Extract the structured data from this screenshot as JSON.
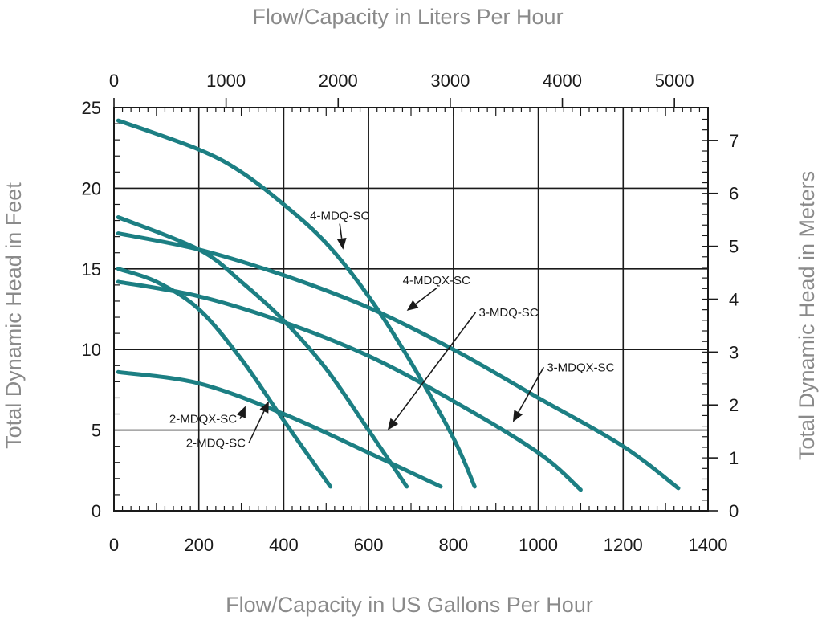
{
  "chart_data": {
    "type": "line",
    "title": "",
    "xlabel": "Flow/Capacity in US Gallons Per Hour",
    "x2label": "Flow/Capacity in Liters Per Hour",
    "ylabel": "Total Dynamic Head in Feet",
    "y2label": "Total Dynamic Head in Meters",
    "xlim": [
      0,
      1400
    ],
    "ylim": [
      0,
      25
    ],
    "x_ticks": [
      0,
      200,
      400,
      600,
      800,
      1000,
      1200,
      1400
    ],
    "y_ticks": [
      0,
      5,
      10,
      15,
      20,
      25
    ],
    "x2_ticks": [
      0,
      1000,
      2000,
      3000,
      4000,
      5000
    ],
    "y2_ticks": [
      0,
      1,
      2,
      3,
      4,
      5,
      6,
      7
    ],
    "grid": true,
    "line_color": "#1c7f83",
    "series": [
      {
        "name": "4-MDQ-SC",
        "x": [
          10,
          200,
          300,
          400,
          500,
          600,
          700,
          800,
          850
        ],
        "y": [
          24.2,
          22.4,
          21.0,
          19.0,
          16.6,
          13.3,
          9.2,
          4.5,
          1.5
        ]
      },
      {
        "name": "4-MDQX-SC",
        "x": [
          10,
          200,
          400,
          600,
          800,
          1000,
          1200,
          1330
        ],
        "y": [
          17.2,
          16.2,
          14.6,
          12.6,
          10.0,
          7.0,
          4.0,
          1.4
        ]
      },
      {
        "name": "3-MDQ-SC",
        "x": [
          10,
          200,
          300,
          400,
          500,
          600,
          690
        ],
        "y": [
          18.2,
          16.2,
          14.2,
          11.8,
          8.8,
          5.0,
          1.5
        ]
      },
      {
        "name": "3-MDQX-SC",
        "x": [
          10,
          200,
          400,
          600,
          800,
          1000,
          1100
        ],
        "y": [
          14.2,
          13.3,
          11.7,
          9.6,
          6.8,
          3.6,
          1.3
        ]
      },
      {
        "name": "2-MDQ-SC",
        "x": [
          10,
          100,
          200,
          300,
          400,
          510
        ],
        "y": [
          15.0,
          14.2,
          12.5,
          9.4,
          5.6,
          1.5
        ]
      },
      {
        "name": "2-MDQX-SC",
        "x": [
          10,
          200,
          400,
          600,
          770
        ],
        "y": [
          8.6,
          7.9,
          6.0,
          3.6,
          1.5
        ]
      }
    ],
    "annotations": [
      {
        "text": "4-MDQ-SC",
        "x": 532,
        "y": 18.3,
        "arrow_to": [
          540,
          16.2
        ]
      },
      {
        "text": "4-MDQX-SC",
        "x": 760,
        "y": 14.3,
        "arrow_to": [
          690,
          12.4
        ]
      },
      {
        "text": "3-MDQ-SC",
        "x": 930,
        "y": 12.3,
        "arrow_to": [
          645,
          5.0
        ]
      },
      {
        "text": "3-MDQX-SC",
        "x": 1100,
        "y": 8.9,
        "arrow_to": [
          940,
          5.5
        ]
      },
      {
        "text": "2-MDQX-SC",
        "x": 210,
        "y": 5.7,
        "arrow_to": [
          310,
          6.5
        ]
      },
      {
        "text": "2-MDQ-SC",
        "x": 240,
        "y": 4.2,
        "arrow_to": [
          365,
          6.8
        ]
      }
    ]
  }
}
